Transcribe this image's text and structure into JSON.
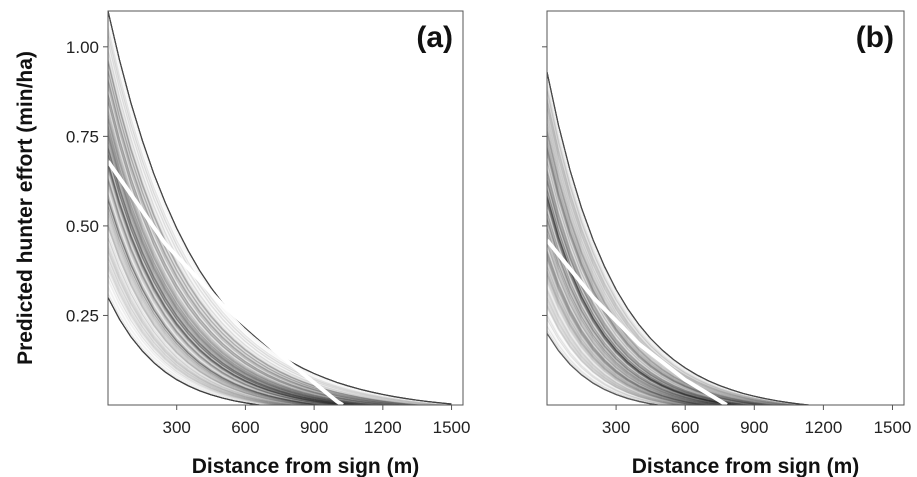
{
  "figure": {
    "ylabel": "Predicted hunter effort (min/ha)",
    "xlabel": "Distance from sign (m)"
  },
  "chart_data": [
    {
      "type": "line",
      "panel_label": "(a)",
      "xlabel": "Distance from sign (m)",
      "ylabel": "Predicted hunter effort (min/ha)",
      "xticks": [
        300,
        600,
        900,
        1200,
        1500
      ],
      "yticks": [
        0.25,
        0.5,
        0.75,
        1.0
      ],
      "ytick_labels": [
        "0.25",
        "0.50",
        "0.75",
        "1.00"
      ],
      "xlim": [
        0,
        1550
      ],
      "ylim": [
        0,
        1.1
      ],
      "grid": false,
      "mean_curve": {
        "x": [
          0,
          250,
          500,
          750,
          1000,
          1025
        ],
        "y": [
          0.68,
          0.45,
          0.28,
          0.14,
          0.01,
          0.0
        ]
      },
      "posterior_band": {
        "lower_x0": 0.3,
        "lower_rate": 0.0042,
        "upper_x0": 1.1,
        "upper_rate": 0.0026,
        "n_draws": 400
      },
      "colors": {
        "draws": "#2b2b2b",
        "mean": "#ffffff"
      }
    },
    {
      "type": "line",
      "panel_label": "(b)",
      "xlabel": "Distance from sign (m)",
      "xticks": [
        300,
        600,
        900,
        1200,
        1500
      ],
      "yticks": [
        0.25,
        0.5,
        0.75,
        1.0
      ],
      "ytick_labels": [
        "",
        "",
        "",
        ""
      ],
      "xlim": [
        0,
        1550
      ],
      "ylim": [
        0,
        1.1
      ],
      "grid": false,
      "mean_curve": {
        "x": [
          0,
          200,
          400,
          600,
          780
        ],
        "y": [
          0.46,
          0.3,
          0.17,
          0.07,
          0.0
        ]
      },
      "posterior_band": {
        "lower_x0": 0.2,
        "lower_rate": 0.005,
        "upper_x0": 0.93,
        "upper_rate": 0.0034,
        "n_draws": 400
      },
      "colors": {
        "draws": "#2b2b2b",
        "mean": "#ffffff"
      }
    }
  ]
}
